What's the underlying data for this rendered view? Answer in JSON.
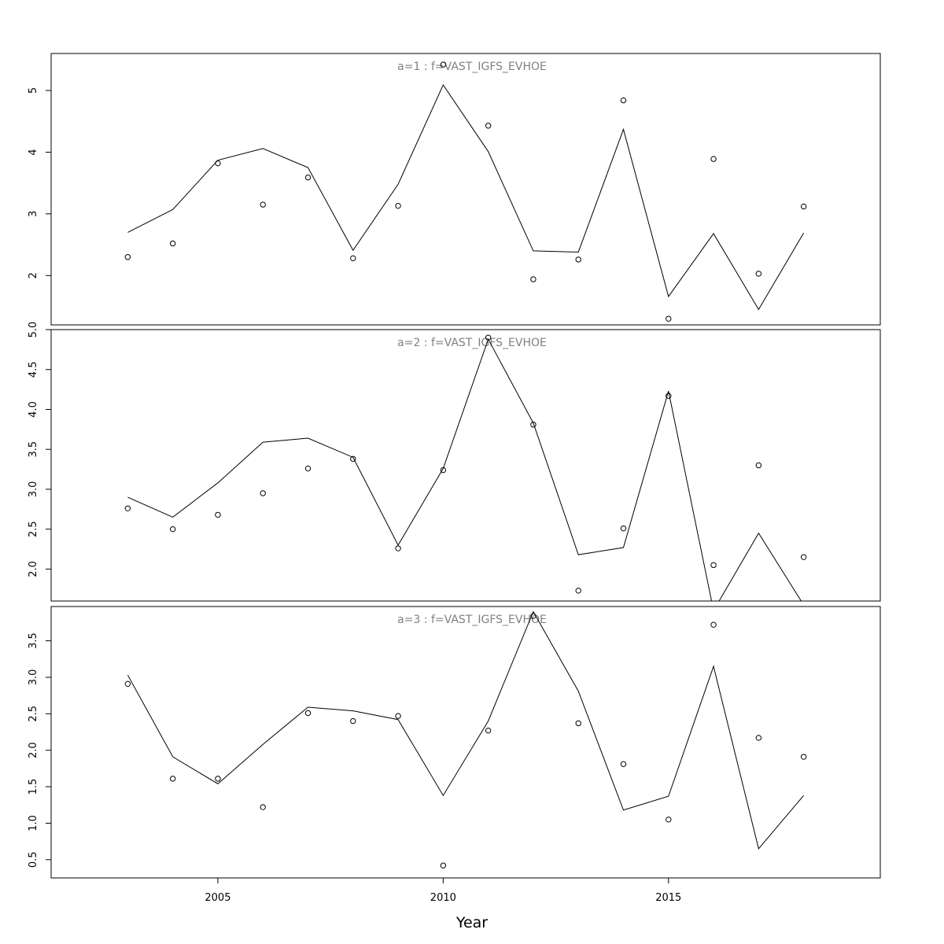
{
  "chart_data": {
    "type": "line",
    "xlabel": "Year",
    "xlim": [
      2001.3,
      2019.7
    ],
    "x_ticks": [
      2005,
      2010,
      2015
    ],
    "x": [
      2003,
      2004,
      2005,
      2006,
      2007,
      2008,
      2009,
      2010,
      2011,
      2012,
      2013,
      2014,
      2015,
      2016,
      2017,
      2018
    ],
    "panels": [
      {
        "title": "a=1  :  f=VAST_IGFS_EVHOE",
        "ylim": [
          1.2,
          5.6
        ],
        "y_ticks": [
          2,
          3,
          4,
          5
        ],
        "series": [
          {
            "kind": "line",
            "values": [
              2.7,
              3.07,
              3.87,
              4.06,
              3.75,
              2.41,
              3.48,
              5.09,
              4.01,
              2.4,
              2.38,
              4.37,
              1.66,
              2.68,
              1.45,
              2.69
            ]
          },
          {
            "kind": "points",
            "values": [
              2.3,
              2.52,
              3.82,
              3.15,
              3.59,
              2.28,
              3.13,
              5.42,
              4.43,
              1.94,
              2.26,
              4.84,
              1.3,
              3.89,
              2.03,
              3.12
            ]
          }
        ]
      },
      {
        "title": "a=2  :  f=VAST_IGFS_EVHOE",
        "ylim": [
          1.6,
          5.0
        ],
        "y_ticks": [
          2.0,
          2.5,
          3.0,
          3.5,
          4.0,
          4.5,
          5.0
        ],
        "series": [
          {
            "kind": "line",
            "values": [
              2.9,
              2.65,
              3.08,
              3.59,
              3.64,
              3.4,
              2.3,
              3.26,
              4.88,
              3.83,
              2.18,
              2.27,
              4.23,
              1.48,
              2.45,
              1.55
            ]
          },
          {
            "kind": "points",
            "values": [
              2.76,
              2.5,
              2.68,
              2.95,
              3.26,
              3.38,
              2.26,
              3.24,
              4.9,
              3.81,
              1.73,
              2.51,
              4.17,
              2.05,
              3.3,
              2.15
            ]
          }
        ]
      },
      {
        "title": "a=3  :  f=VAST_IGFS_EVHOE",
        "ylim": [
          0.25,
          3.97
        ],
        "y_ticks": [
          0.5,
          1.0,
          1.5,
          2.0,
          2.5,
          3.0,
          3.5
        ],
        "series": [
          {
            "kind": "line",
            "values": [
              3.03,
              1.91,
              1.54,
              2.08,
              2.59,
              2.54,
              2.42,
              1.38,
              2.4,
              3.9,
              2.81,
              1.18,
              1.37,
              3.15,
              0.65,
              1.38
            ]
          },
          {
            "kind": "points",
            "values": [
              2.91,
              1.61,
              1.61,
              1.22,
              2.51,
              2.4,
              2.47,
              0.42,
              2.27,
              3.84,
              2.37,
              1.81,
              1.05,
              3.72,
              2.17,
              1.91
            ]
          }
        ]
      }
    ]
  }
}
